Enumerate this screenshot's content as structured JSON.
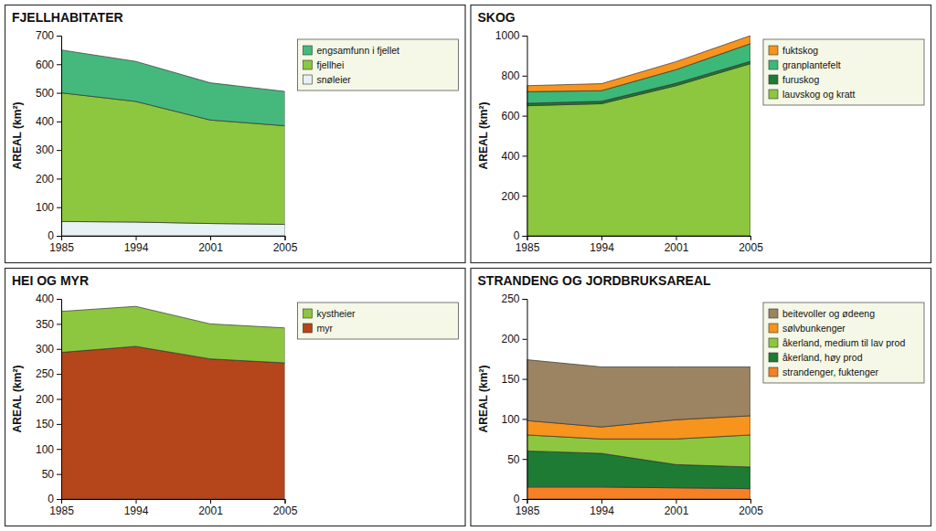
{
  "chart_data": [
    {
      "type": "area",
      "stacked": true,
      "title": "FJELLHABITATER",
      "y_label": "AREAL (km²)",
      "categories": [
        "1985",
        "1994",
        "2001",
        "2005"
      ],
      "series": [
        {
          "name": "snøleier",
          "color": "#e8f1f4",
          "values": [
            50,
            48,
            43,
            40
          ]
        },
        {
          "name": "fjellhei",
          "color": "#8dc63f",
          "values": [
            450,
            422,
            362,
            345
          ]
        },
        {
          "name": "engsamfunn i fjellet",
          "color": "#45b97c",
          "values": [
            150,
            140,
            130,
            120
          ]
        }
      ],
      "ylim": [
        0,
        700
      ],
      "yticks": [
        0,
        100,
        200,
        300,
        400,
        500,
        600,
        700
      ],
      "legend": "right"
    },
    {
      "type": "area",
      "stacked": true,
      "title": "SKOG",
      "y_label": "AREAL (km²)",
      "categories": [
        "1985",
        "1994",
        "2001",
        "2005"
      ],
      "series": [
        {
          "name": "lauvskog og kratt",
          "color": "#8dc63f",
          "values": [
            650,
            660,
            750,
            860
          ]
        },
        {
          "name": "furuskog",
          "color": "#1e7b34",
          "values": [
            12,
            12,
            12,
            12
          ]
        },
        {
          "name": "granplantefelt",
          "color": "#3cb878",
          "values": [
            58,
            53,
            68,
            88
          ]
        },
        {
          "name": "fuktskog",
          "color": "#f7941d",
          "values": [
            30,
            35,
            40,
            40
          ]
        }
      ],
      "ylim": [
        0,
        1000
      ],
      "yticks": [
        0,
        200,
        400,
        600,
        800,
        1000
      ],
      "legend": "right"
    },
    {
      "type": "area",
      "stacked": true,
      "title": "HEI OG MYR",
      "y_label": "AREAL (km²)",
      "categories": [
        "1985",
        "1994",
        "2001",
        "2005"
      ],
      "series": [
        {
          "name": "myr",
          "color": "#b5451b",
          "values": [
            293,
            305,
            280,
            272
          ]
        },
        {
          "name": "kystheier",
          "color": "#8dc63f",
          "values": [
            82,
            80,
            70,
            70
          ]
        }
      ],
      "ylim": [
        0,
        400
      ],
      "yticks": [
        0,
        50,
        100,
        150,
        200,
        250,
        300,
        350,
        400
      ],
      "legend": "right"
    },
    {
      "type": "area",
      "stacked": true,
      "title": "STRANDENG OG JORDBRUKSAREAL",
      "y_label": "AREAL (km²)",
      "categories": [
        "1985",
        "1994",
        "2001",
        "2005"
      ],
      "series": [
        {
          "name": "strandenger, fuktenger",
          "color": "#f58025",
          "values": [
            15,
            15,
            14,
            13
          ]
        },
        {
          "name": "åkerland, høy prod",
          "color": "#1e7b34",
          "values": [
            45,
            42,
            29,
            27
          ]
        },
        {
          "name": "åkerland, medium til lav prod",
          "color": "#8dc63f",
          "values": [
            20,
            18,
            32,
            40
          ]
        },
        {
          "name": "sølvbunkenger",
          "color": "#f7941d",
          "values": [
            18,
            15,
            24,
            24
          ]
        },
        {
          "name": "beitevoller og ødeeng",
          "color": "#9c8462",
          "values": [
            76,
            75,
            66,
            61
          ]
        }
      ],
      "ylim": [
        0,
        250
      ],
      "yticks": [
        0,
        50,
        100,
        150,
        200,
        250
      ],
      "legend": "right"
    }
  ]
}
